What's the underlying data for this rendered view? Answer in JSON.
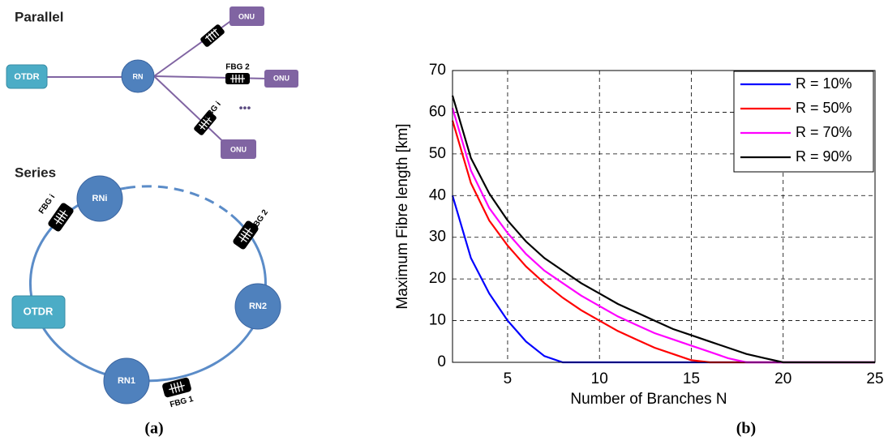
{
  "diagram": {
    "parallel": {
      "title": "Parallel",
      "otdr": "OTDR",
      "rn": "RN",
      "onus": [
        "ONU",
        "ONU",
        "ONU"
      ],
      "fbg_labels": [
        "FBG 2",
        "FBG i"
      ],
      "ellipsis": "•••"
    },
    "series": {
      "title": "Series",
      "nodes": [
        "RNi",
        "RN2",
        "RN1"
      ],
      "otdr": "OTDR",
      "fbg_labels": [
        "FBG i",
        "FBG 2",
        "FBG 1"
      ]
    },
    "captions": [
      "(a)",
      "(b)"
    ]
  },
  "chart_data": {
    "type": "line",
    "x_label": "Number of Branches N",
    "y_label": "Maximum Fibre length [km]",
    "x": [
      2,
      3,
      4,
      5,
      6,
      7,
      8,
      9,
      10,
      11,
      12,
      13,
      14,
      15,
      16,
      17,
      18,
      19,
      20,
      21,
      22,
      23,
      24,
      25
    ],
    "series": [
      {
        "name": "R = 10%",
        "color": "#0000ff",
        "values": [
          40,
          25,
          16.5,
          10,
          5,
          1.5,
          0,
          0,
          0,
          0,
          0,
          0,
          0,
          0,
          0,
          0,
          0,
          0,
          0,
          0,
          0,
          0,
          0,
          0
        ]
      },
      {
        "name": "R = 50%",
        "color": "#ff0000",
        "values": [
          58,
          43,
          34,
          28,
          23,
          19,
          15.5,
          12.5,
          10,
          7.5,
          5.5,
          3.5,
          2,
          0.5,
          0,
          0,
          0,
          0,
          0,
          0,
          0,
          0,
          0,
          0
        ]
      },
      {
        "name": "R = 70%",
        "color": "#ff00ff",
        "values": [
          61,
          46,
          37,
          31,
          26,
          22,
          19,
          16,
          13.5,
          11,
          9,
          7,
          5.5,
          4,
          2.5,
          1,
          0,
          0,
          0,
          0,
          0,
          0,
          0,
          0
        ]
      },
      {
        "name": "R = 90%",
        "color": "#000000",
        "values": [
          64,
          49,
          40.5,
          34,
          29,
          25,
          22,
          19,
          16.5,
          14,
          12,
          10,
          8,
          6.5,
          5,
          3.5,
          2,
          1,
          0,
          0,
          0,
          0,
          0,
          0
        ]
      }
    ],
    "xlim": [
      2,
      25
    ],
    "xticks": [
      5,
      10,
      15,
      20,
      25
    ],
    "ylim": [
      0,
      70
    ],
    "yticks": [
      0,
      10,
      20,
      30,
      40,
      50,
      60,
      70
    ],
    "grid": true,
    "legend": "upper right"
  }
}
